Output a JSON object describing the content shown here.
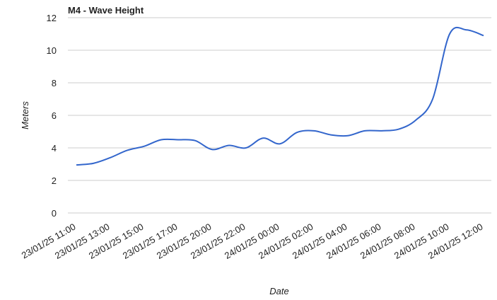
{
  "chart_data": {
    "type": "line",
    "title": "M4 - Wave Height",
    "x_label": "Date",
    "y_label": "Meters",
    "categories": [
      "23/01/25 11:00",
      null,
      "23/01/25 13:00",
      null,
      "23/01/25 15:00",
      null,
      "23/01/25 17:00",
      null,
      "23/01/25 20:00",
      null,
      "23/01/25 22:00",
      null,
      "24/01/25 00:00",
      null,
      "24/01/25 02:00",
      null,
      "24/01/25 04:00",
      null,
      "24/01/25 06:00",
      null,
      "24/01/25 08:00",
      null,
      "24/01/25 10:00",
      null,
      "24/01/25 12:00"
    ],
    "series": [
      {
        "name": "Wave Height",
        "color": "#3366cc",
        "values": [
          2.95,
          3.05,
          3.4,
          3.85,
          4.1,
          4.5,
          4.5,
          4.45,
          3.9,
          4.15,
          4.0,
          4.6,
          4.25,
          4.95,
          5.05,
          4.8,
          4.75,
          5.05,
          5.05,
          5.15,
          5.7,
          7.0,
          11.0,
          11.25,
          10.9
        ]
      }
    ],
    "ylim": [
      0,
      12
    ],
    "yticks": [
      0,
      2,
      4,
      6,
      8,
      10,
      12
    ],
    "grid": true
  }
}
